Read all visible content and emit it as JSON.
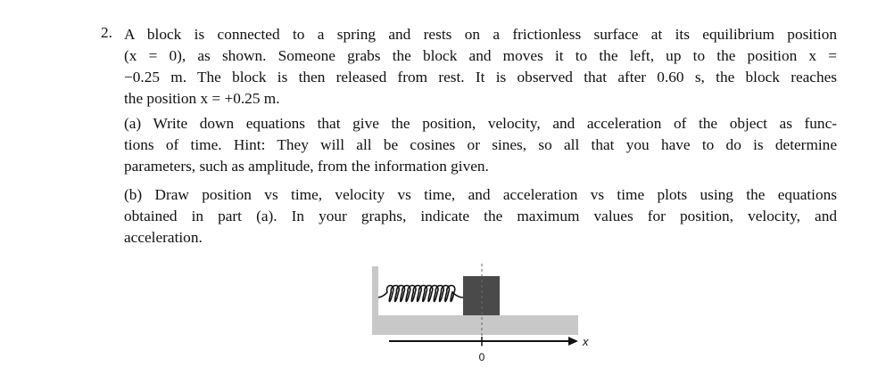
{
  "problem": {
    "number": "2.",
    "intro_lines": [
      "A block is connected to a spring and rests on a frictionless surface at its equilibrium position",
      "(x = 0), as shown. Someone grabs the block and moves it to the left, up to the position x =",
      "−0.25 m. The block is then released from rest. It is observed that after 0.60 s, the block reaches",
      "the position x = +0.25 m."
    ],
    "part_a_lines": [
      "(a) Write down equations that give the position, velocity, and acceleration of the object as func-",
      "tions of time. Hint: They will all be cosines or sines, so all that you have to do is determine",
      "parameters, such as amplitude, from the information given."
    ],
    "part_b_lines": [
      "(b) Draw position vs time, velocity vs time, and acceleration vs time plots using the equations",
      "obtained in part (a). In your graphs, indicate the maximum values for position, velocity, and",
      "acceleration."
    ]
  },
  "figure": {
    "origin_label": "0",
    "axis_label": "x",
    "colors": {
      "surface": "#c8c8c8",
      "block": "#4a4a4a",
      "spring": "#111111"
    }
  }
}
